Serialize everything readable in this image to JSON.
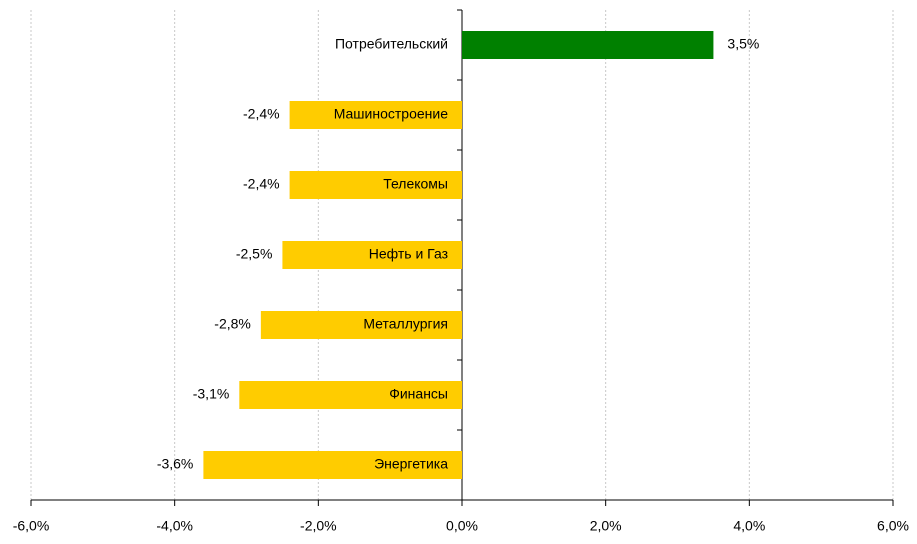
{
  "chart_data": {
    "type": "bar",
    "orientation": "horizontal",
    "categories": [
      "Потребительский",
      "Машиностроение",
      "Телекомы",
      "Нефть и Газ",
      "Металлургия",
      "Финансы",
      "Энергетика"
    ],
    "values": [
      3.5,
      -2.4,
      -2.4,
      -2.5,
      -2.8,
      -3.1,
      -3.6
    ],
    "value_labels": [
      "3,5%",
      "-2,4%",
      "-2,4%",
      "-2,5%",
      "-2,8%",
      "-3,1%",
      "-3,6%"
    ],
    "colors": [
      "#008000",
      "#ffcc00",
      "#ffcc00",
      "#ffcc00",
      "#ffcc00",
      "#ffcc00",
      "#ffcc00"
    ],
    "xlim": [
      -6,
      6
    ],
    "xticks": [
      {
        "value": -6,
        "label": "-6,0%"
      },
      {
        "value": -4,
        "label": "-4,0%"
      },
      {
        "value": -2,
        "label": "-2,0%"
      },
      {
        "value": 0,
        "label": "0,0%"
      },
      {
        "value": 2,
        "label": "2,0%"
      },
      {
        "value": 4,
        "label": "4,0%"
      },
      {
        "value": 6,
        "label": "6,0%"
      }
    ],
    "grid": true
  }
}
